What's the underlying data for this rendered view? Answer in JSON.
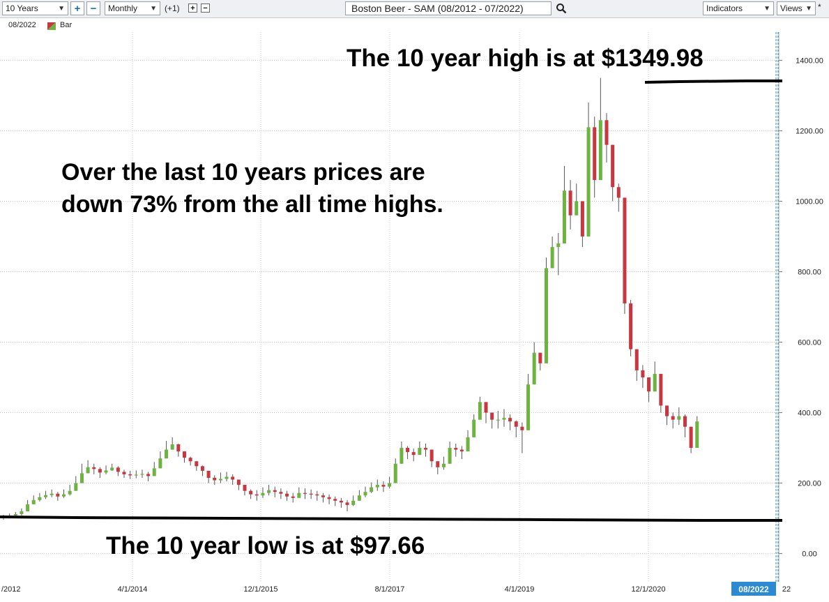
{
  "toolbar": {
    "range_select": "10 Years",
    "zoom_in": "+",
    "zoom_out": "−",
    "interval_select": "Monthly",
    "offset_label": "(+1)",
    "offset_plus": "+",
    "offset_minus": "−",
    "chart_title": "Boston Beer - SAM (08/2012 - 07/2022)",
    "search_icon": "magnifier-icon",
    "indicators_select": "Indicators",
    "views_select": "Views",
    "asterisk": "*"
  },
  "info_bar": {
    "date": "08/2022",
    "style_label": "Bar"
  },
  "colors": {
    "up": "#6db33f",
    "down": "#c8363f",
    "grid": "#c8c8c8",
    "crosshair": "#2a8ad4",
    "date_badge": "#2a8ad4"
  },
  "annotations": {
    "high_text": "The 10 year high is at $1349.98",
    "low_text": "The 10 year low is at $97.66",
    "drawdown_line1": "Over the last 10 years prices are",
    "drawdown_line2": "down 73% from the all time highs."
  },
  "chart_data": {
    "type": "candlestick",
    "title": "Boston Beer - SAM (08/2012 - 07/2022)",
    "interval": "Monthly",
    "x_tick_labels": [
      "/2012",
      "4/1/2014",
      "12/1/2015",
      "8/1/2017",
      "4/1/2019",
      "12/1/2020",
      "22"
    ],
    "current_date_badge": "08/2022",
    "y_axis": {
      "ylim": [
        -80,
        1480
      ],
      "ticks": [
        0,
        200,
        400,
        600,
        800,
        1000,
        1200,
        1400
      ],
      "tick_format": "0.00",
      "position": "right"
    },
    "grid": true,
    "high_value": 1349.98,
    "low_value": 97.66,
    "close": [
      106,
      108,
      112,
      120,
      140,
      152,
      160,
      166,
      170,
      162,
      168,
      178,
      200,
      228,
      245,
      240,
      230,
      236,
      244,
      232,
      225,
      222,
      224,
      226,
      220,
      242,
      270,
      295,
      310,
      290,
      272,
      262,
      248,
      235,
      215,
      208,
      212,
      218,
      210,
      195,
      178,
      168,
      165,
      172,
      180,
      175,
      170,
      162,
      158,
      172,
      170,
      168,
      165,
      160,
      155,
      150,
      145,
      138,
      150,
      165,
      175,
      188,
      195,
      190,
      200,
      255,
      300,
      288,
      280,
      300,
      295,
      262,
      245,
      255,
      300,
      295,
      290,
      330,
      380,
      430,
      400,
      380,
      380,
      385,
      375,
      360,
      350,
      480,
      570,
      540,
      810,
      870,
      880,
      1030,
      960,
      1000,
      900,
      1210,
      1060,
      1230,
      1160,
      1040,
      1010,
      710,
      580,
      520,
      500,
      460,
      510,
      420,
      390,
      380,
      390,
      360,
      300,
      375
    ],
    "ranges": [
      [
        96,
        110
      ],
      [
        100,
        114
      ],
      [
        102,
        118
      ],
      [
        108,
        128
      ],
      [
        124,
        152
      ],
      [
        140,
        165
      ],
      [
        148,
        172
      ],
      [
        155,
        178
      ],
      [
        160,
        182
      ],
      [
        150,
        175
      ],
      [
        158,
        182
      ],
      [
        165,
        195
      ],
      [
        188,
        220
      ],
      [
        215,
        255
      ],
      [
        230,
        265
      ],
      [
        225,
        255
      ],
      [
        215,
        245
      ],
      [
        225,
        250
      ],
      [
        235,
        255
      ],
      [
        220,
        248
      ],
      [
        215,
        238
      ],
      [
        212,
        235
      ],
      [
        214,
        236
      ],
      [
        215,
        238
      ],
      [
        205,
        232
      ],
      [
        228,
        260
      ],
      [
        255,
        290
      ],
      [
        280,
        320
      ],
      [
        298,
        330
      ],
      [
        275,
        312
      ],
      [
        258,
        288
      ],
      [
        250,
        275
      ],
      [
        235,
        262
      ],
      [
        220,
        250
      ],
      [
        200,
        232
      ],
      [
        195,
        222
      ],
      [
        200,
        230
      ],
      [
        205,
        232
      ],
      [
        195,
        225
      ],
      [
        180,
        210
      ],
      [
        165,
        195
      ],
      [
        155,
        182
      ],
      [
        150,
        180
      ],
      [
        158,
        188
      ],
      [
        165,
        195
      ],
      [
        160,
        190
      ],
      [
        155,
        185
      ],
      [
        150,
        178
      ],
      [
        145,
        172
      ],
      [
        158,
        188
      ],
      [
        155,
        185
      ],
      [
        155,
        182
      ],
      [
        150,
        178
      ],
      [
        145,
        172
      ],
      [
        140,
        168
      ],
      [
        135,
        162
      ],
      [
        130,
        158
      ],
      [
        120,
        152
      ],
      [
        135,
        165
      ],
      [
        150,
        180
      ],
      [
        160,
        190
      ],
      [
        172,
        202
      ],
      [
        178,
        210
      ],
      [
        175,
        205
      ],
      [
        185,
        218
      ],
      [
        235,
        270
      ],
      [
        285,
        318
      ],
      [
        268,
        305
      ],
      [
        262,
        298
      ],
      [
        280,
        318
      ],
      [
        275,
        312
      ],
      [
        245,
        282
      ],
      [
        225,
        262
      ],
      [
        238,
        275
      ],
      [
        275,
        318
      ],
      [
        275,
        312
      ],
      [
        268,
        305
      ],
      [
        305,
        350
      ],
      [
        350,
        395
      ],
      [
        400,
        445
      ],
      [
        370,
        420
      ],
      [
        355,
        400
      ],
      [
        355,
        405
      ],
      [
        360,
        410
      ],
      [
        350,
        395
      ],
      [
        330,
        378
      ],
      [
        285,
        372
      ],
      [
        455,
        510
      ],
      [
        540,
        600
      ],
      [
        520,
        568
      ],
      [
        780,
        840
      ],
      [
        840,
        900
      ],
      [
        790,
        910
      ],
      [
        980,
        1100
      ],
      [
        920,
        1060
      ],
      [
        960,
        1050
      ],
      [
        870,
        980
      ],
      [
        1180,
        1280
      ],
      [
        1010,
        1240
      ],
      [
        1160,
        1350
      ],
      [
        1110,
        1250
      ],
      [
        1000,
        1080
      ],
      [
        970,
        1050
      ],
      [
        680,
        1010
      ],
      [
        560,
        720
      ],
      [
        490,
        580
      ],
      [
        470,
        535
      ],
      [
        430,
        500
      ],
      [
        470,
        545
      ],
      [
        400,
        510
      ],
      [
        365,
        410
      ],
      [
        355,
        400
      ],
      [
        365,
        415
      ],
      [
        330,
        395
      ],
      [
        285,
        360
      ],
      [
        340,
        390
      ]
    ]
  }
}
